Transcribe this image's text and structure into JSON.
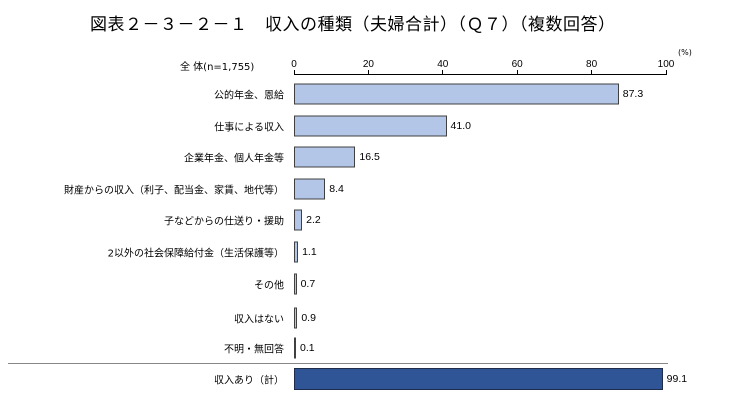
{
  "title": "図表２－３－２－１　収入の種類（夫婦合計）（Ｑ７）（複数回答）",
  "n_label": "全 体(n=1,755)",
  "unit": "(%)",
  "axis_ticks": [
    "0",
    "20",
    "40",
    "60",
    "80",
    "100"
  ],
  "colors": {
    "bar": "#b4c6e7",
    "total_bar": "#2f5597"
  },
  "chart_data": {
    "type": "bar",
    "orientation": "horizontal",
    "title": "図表２－３－２－１　収入の種類（夫婦合計）（Ｑ７）（複数回答）",
    "subtitle": "全 体(n=1,755)",
    "xlabel": "(%)",
    "ylabel": "",
    "xlim": [
      0,
      100
    ],
    "xticks": [
      0,
      20,
      40,
      60,
      80,
      100
    ],
    "grid": false,
    "legend": null,
    "categories": [
      "公的年金、恩給",
      "仕事による収入",
      "企業年金、個人年金等",
      "財産からの収入（利子、配当金、家賃、地代等）",
      "子などからの仕送り・援助",
      "2以外の社会保障給付金（生活保護等）",
      "その他",
      "収入はない",
      "不明・無回答",
      "収入あり（計）"
    ],
    "values": [
      87.3,
      41.0,
      16.5,
      8.4,
      2.2,
      1.1,
      0.7,
      0.9,
      0.1,
      99.1
    ]
  },
  "rows": [
    {
      "label": "公的年金、恩給",
      "value": "87.3"
    },
    {
      "label": "仕事による収入",
      "value": "41.0"
    },
    {
      "label": "企業年金、個人年金等",
      "value": "16.5"
    },
    {
      "label": "財産からの収入（利子、配当金、家賃、地代等）",
      "value": "8.4"
    },
    {
      "label": "子などからの仕送り・援助",
      "value": "2.2"
    },
    {
      "label": "2以外の社会保障給付金（生活保護等）",
      "value": "1.1"
    },
    {
      "label": "その他",
      "value": "0.7"
    },
    {
      "label": "収入はない",
      "value": "0.9"
    },
    {
      "label": "不明・無回答",
      "value": "0.1"
    },
    {
      "label": "収入あり（計）",
      "value": "99.1"
    }
  ]
}
